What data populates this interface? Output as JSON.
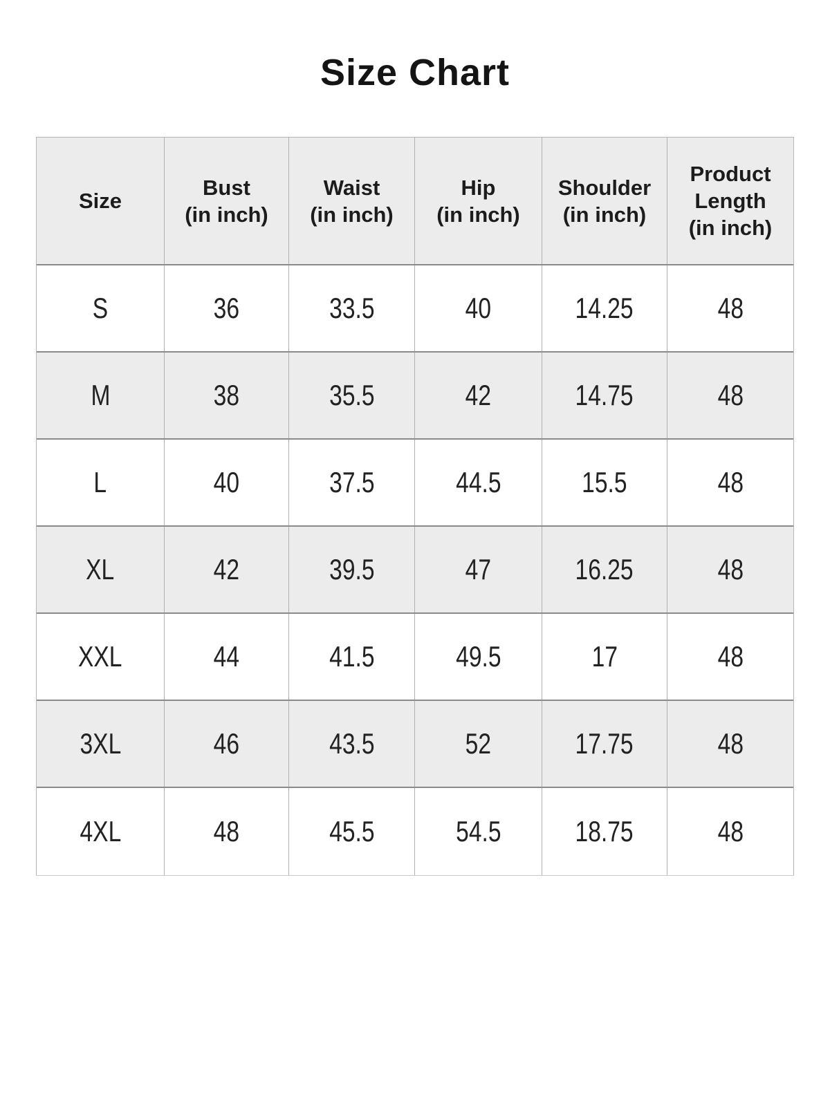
{
  "title": "Size Chart",
  "colors": {
    "background": "#ffffff",
    "header_bg": "#ececec",
    "stripe_row_bg": "#ececec",
    "plain_row_bg": "#ffffff",
    "horizontal_grid_line": "#8a8a8a",
    "vertical_grid_line": "#b0b0b0",
    "text": "#1c1c1c"
  },
  "chart_data": {
    "type": "table",
    "title": "Size Chart",
    "columns": [
      {
        "line1": "Size"
      },
      {
        "line1": "Bust",
        "line2": "(in inch)"
      },
      {
        "line1": "Waist",
        "line2": "(in inch)"
      },
      {
        "line1": "Hip",
        "line2": "(in inch)"
      },
      {
        "line1": "Shoulder",
        "line2": "(in inch)"
      },
      {
        "line1": "Product",
        "line2": "Length",
        "line3": "(in inch)"
      }
    ],
    "rows": [
      {
        "size": "S",
        "values": [
          "36",
          "33.5",
          "40",
          "14.25",
          "48"
        ]
      },
      {
        "size": "M",
        "values": [
          "38",
          "35.5",
          "42",
          "14.75",
          "48"
        ]
      },
      {
        "size": "L",
        "values": [
          "40",
          "37.5",
          "44.5",
          "15.5",
          "48"
        ]
      },
      {
        "size": "XL",
        "values": [
          "42",
          "39.5",
          "47",
          "16.25",
          "48"
        ]
      },
      {
        "size": "XXL",
        "values": [
          "44",
          "41.5",
          "49.5",
          "17",
          "48"
        ]
      },
      {
        "size": "3XL",
        "values": [
          "46",
          "43.5",
          "52",
          "17.75",
          "48"
        ]
      },
      {
        "size": "4XL",
        "values": [
          "48",
          "45.5",
          "54.5",
          "18.75",
          "48"
        ]
      }
    ]
  }
}
